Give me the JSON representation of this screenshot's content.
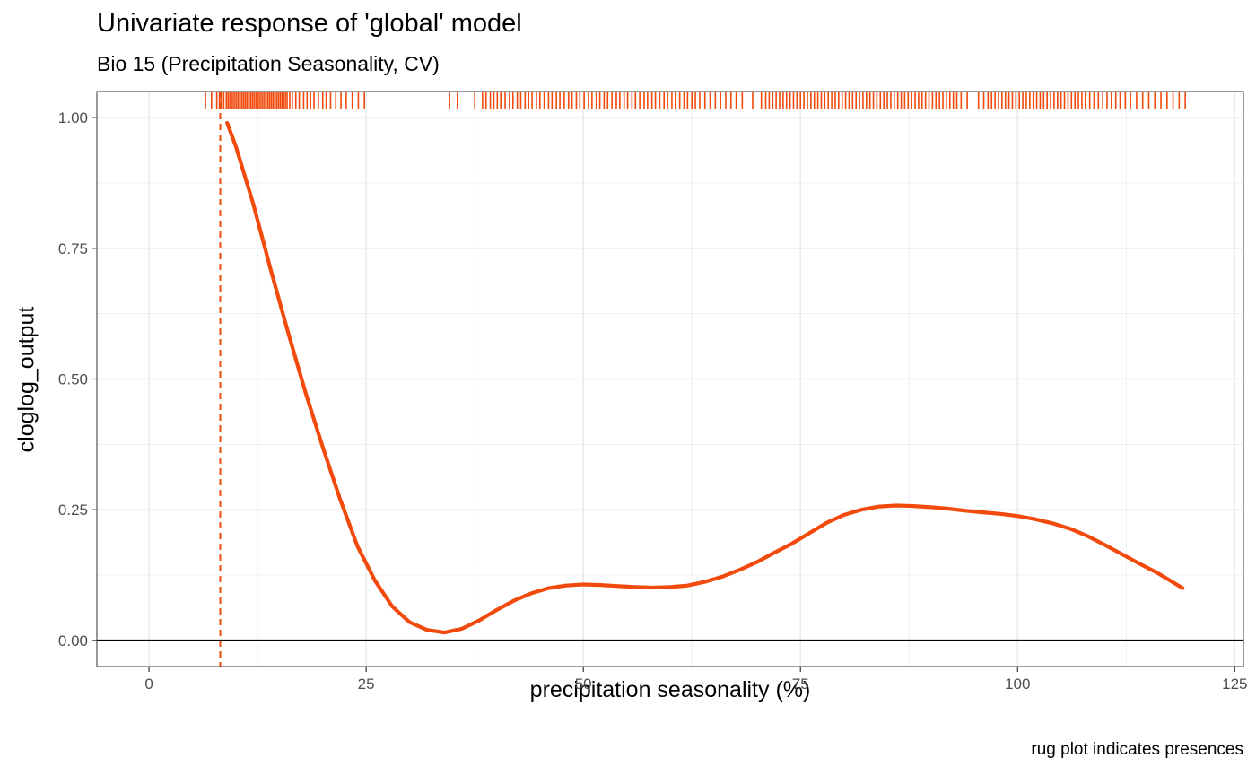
{
  "chart_data": {
    "type": "line",
    "title": "Univariate response of 'global' model",
    "subtitle": "Bio 15 (Precipitation Seasonality, CV)",
    "xlabel": "precipitation seasonality (%)",
    "ylabel": "cloglog_output",
    "caption": "rug plot indicates presences",
    "xlim": [
      -6,
      126
    ],
    "ylim": [
      -0.05,
      1.05
    ],
    "x_ticks": [
      0,
      25,
      50,
      75,
      100,
      125
    ],
    "x_tick_labels": [
      "0",
      "25",
      "50",
      "75",
      "100",
      "125"
    ],
    "y_ticks": [
      0,
      0.25,
      0.5,
      0.75,
      1
    ],
    "y_tick_labels": [
      "0.00",
      "0.25",
      "0.50",
      "0.75",
      "1.00"
    ],
    "grid": true,
    "colors": {
      "curve": "#F24A0C",
      "rug": "#F24A0C",
      "threshold": "#F24A0C",
      "baseline": "#000000",
      "grid": "#EBEBEB",
      "panel_border": "#333333"
    },
    "series": [
      {
        "x": [
          9,
          10,
          12,
          14,
          16,
          18,
          20,
          22,
          24,
          26,
          28,
          30,
          32,
          34,
          36,
          38,
          40,
          42,
          44,
          46,
          48,
          50,
          52,
          54,
          56,
          58,
          60,
          62,
          64,
          66,
          68,
          70,
          72,
          74,
          76,
          78,
          80,
          82,
          84,
          86,
          88,
          90,
          92,
          94,
          96,
          98,
          100,
          102,
          104,
          106,
          108,
          110,
          112,
          114,
          116,
          119
        ],
        "y": [
          0.99,
          0.945,
          0.835,
          0.71,
          0.59,
          0.475,
          0.37,
          0.27,
          0.18,
          0.115,
          0.065,
          0.035,
          0.02,
          0.015,
          0.022,
          0.038,
          0.058,
          0.076,
          0.09,
          0.1,
          0.105,
          0.107,
          0.106,
          0.104,
          0.102,
          0.101,
          0.102,
          0.105,
          0.112,
          0.122,
          0.135,
          0.15,
          0.168,
          0.185,
          0.205,
          0.225,
          0.24,
          0.25,
          0.256,
          0.258,
          0.257,
          0.255,
          0.252,
          0.248,
          0.245,
          0.242,
          0.238,
          0.232,
          0.224,
          0.214,
          0.2,
          0.183,
          0.165,
          0.147,
          0.13,
          0.1
        ]
      }
    ],
    "threshold_x": 8.2,
    "rug": [
      6.5,
      7.2,
      7.8,
      8.1,
      8.3,
      8.6,
      8.9,
      9.1,
      9.3,
      9.5,
      9.7,
      9.9,
      10.1,
      10.3,
      10.5,
      10.7,
      10.9,
      11.1,
      11.3,
      11.5,
      11.7,
      11.9,
      12.1,
      12.3,
      12.5,
      12.7,
      12.9,
      13.1,
      13.3,
      13.5,
      13.7,
      13.9,
      14.1,
      14.3,
      14.5,
      14.7,
      14.9,
      15.1,
      15.3,
      15.5,
      15.7,
      15.9,
      16.2,
      16.5,
      16.9,
      17.3,
      17.8,
      18.2,
      18.6,
      19.0,
      19.5,
      20.0,
      20.4,
      20.9,
      21.5,
      22.1,
      22.7,
      23.4,
      24.1,
      24.8,
      34.6,
      35.5,
      37.5,
      38.4,
      38.8,
      39.3,
      39.7,
      40.1,
      40.5,
      41.0,
      41.5,
      41.9,
      42.4,
      42.8,
      43.3,
      43.7,
      44.1,
      44.6,
      45.0,
      45.5,
      46.0,
      46.4,
      46.9,
      47.3,
      47.8,
      48.3,
      48.7,
      49.2,
      49.6,
      50.1,
      50.6,
      51.0,
      51.5,
      51.9,
      52.4,
      52.8,
      53.3,
      53.8,
      54.2,
      54.7,
      55.1,
      55.6,
      56.0,
      56.5,
      57.0,
      57.4,
      57.9,
      58.3,
      58.8,
      59.3,
      59.7,
      60.2,
      60.6,
      61.1,
      61.6,
      62.0,
      62.5,
      62.9,
      63.4,
      64.0,
      64.6,
      65.2,
      65.8,
      66.4,
      67.0,
      67.6,
      68.3,
      69.5,
      70.5,
      71.0,
      71.4,
      71.8,
      72.2,
      72.6,
      73.0,
      73.4,
      73.8,
      74.2,
      74.6,
      75.0,
      75.4,
      75.8,
      76.2,
      76.6,
      77.0,
      77.4,
      77.8,
      78.2,
      78.6,
      79.0,
      79.4,
      79.8,
      80.2,
      80.6,
      81.0,
      81.4,
      81.8,
      82.2,
      82.6,
      83.0,
      83.4,
      83.8,
      84.2,
      84.6,
      85.0,
      85.4,
      85.8,
      86.2,
      86.6,
      87.0,
      87.4,
      87.8,
      88.2,
      88.6,
      89.0,
      89.4,
      89.8,
      90.2,
      90.6,
      91.0,
      91.4,
      91.8,
      92.2,
      92.6,
      93.0,
      93.5,
      94.2,
      95.5,
      96.1,
      96.6,
      97.0,
      97.4,
      97.8,
      98.2,
      98.6,
      99.0,
      99.4,
      99.8,
      100.2,
      100.6,
      101.0,
      101.4,
      101.8,
      102.2,
      102.6,
      103.0,
      103.4,
      103.8,
      104.2,
      104.6,
      105.0,
      105.4,
      105.8,
      106.2,
      106.6,
      107.0,
      107.4,
      107.8,
      108.3,
      108.8,
      109.3,
      109.8,
      110.3,
      110.8,
      111.3,
      111.8,
      112.4,
      113.0,
      113.7,
      114.4,
      115.1,
      115.8,
      116.5,
      117.2,
      117.9,
      118.6,
      119.3
    ]
  }
}
